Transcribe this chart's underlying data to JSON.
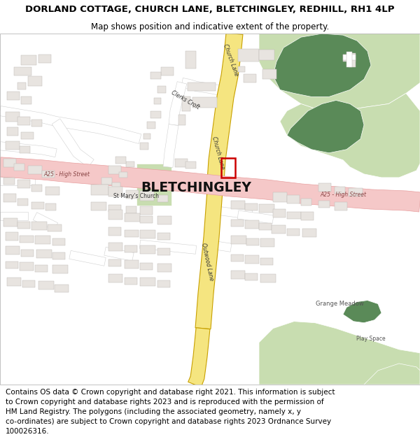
{
  "title_line1": "DORLAND COTTAGE, CHURCH LANE, BLETCHINGLEY, REDHILL, RH1 4LP",
  "title_line2": "Map shows position and indicative extent of the property.",
  "footer_lines": [
    "Contains OS data © Crown copyright and database right 2021. This information is subject",
    "to Crown copyright and database rights 2023 and is reproduced with the permission of",
    "HM Land Registry. The polygons (including the associated geometry, namely x, y",
    "co-ordinates) are subject to Crown copyright and database rights 2023 Ordnance Survey",
    "100026316."
  ],
  "title_fontsize": 9.5,
  "subtitle_fontsize": 8.5,
  "footer_fontsize": 7.5,
  "bg_color": "#ffffff",
  "map_bg": "#ffffff",
  "road_yellow_fill": "#f5e580",
  "road_yellow_border": "#c8a000",
  "road_pink_fill": "#f5c8c8",
  "road_pink_border": "#e8a0a0",
  "green_light": "#c8ddb0",
  "green_dark": "#5a8a58",
  "building_fill": "#e8e4e0",
  "building_stroke": "#c0bcb8",
  "red_outline": "#cc0000",
  "label_color": "#555555",
  "road_label_color": "#884444",
  "bletchingley_fontsize": 13.5,
  "map_label_fontsize": 6.0,
  "map_small_fontsize": 5.5
}
